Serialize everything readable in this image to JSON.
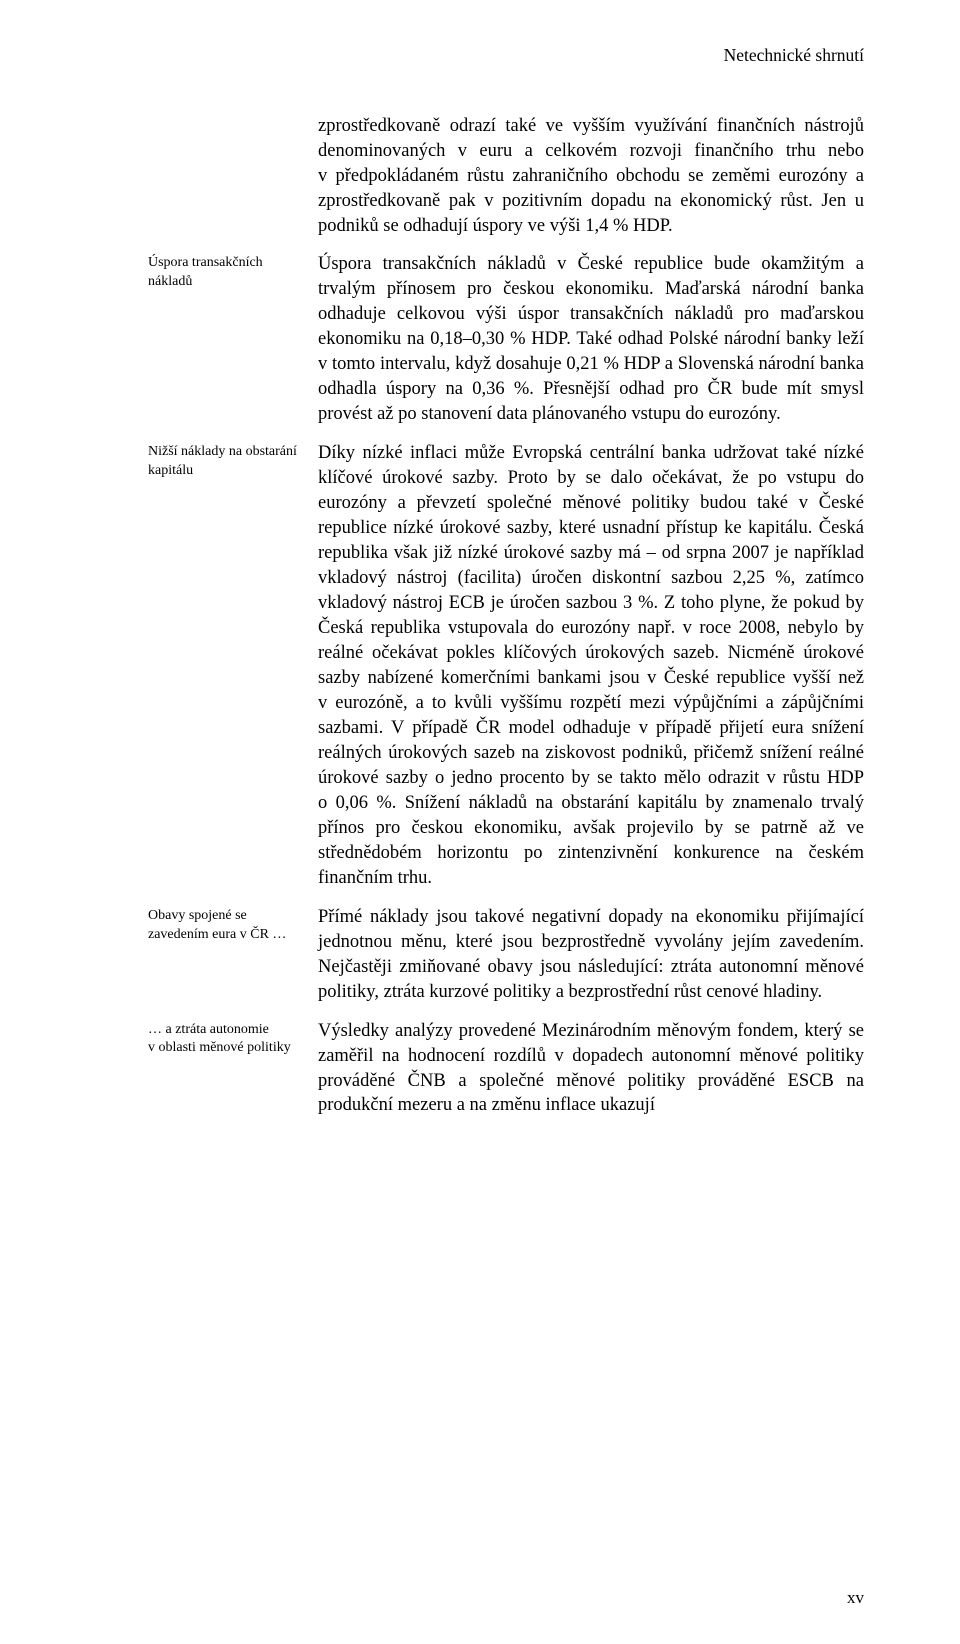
{
  "header_right": "Netechnické shrnutí",
  "page_number": "xv",
  "sections": [
    {
      "margin": "",
      "body": "zprostředkovaně odrazí také ve vyšším využívání finančních nástrojů denominovaných v euru a celkovém rozvoji finančního trhu nebo v předpokládaném růstu zahraničního obchodu se zeměmi eurozóny a zprostředkovaně pak v pozitivním dopadu na ekonomický růst. Jen u podniků se odhadují úspory ve výši 1,4 % HDP."
    },
    {
      "margin": "Úspora transakčních nákladů",
      "body": "Úspora transakčních nákladů v České republice bude okamžitým a trvalým přínosem pro českou ekonomiku. Maďarská národní banka odhaduje celkovou výši úspor transakčních nákladů pro maďarskou ekonomiku na 0,18–0,30 % HDP. Také odhad Polské národní banky leží v tomto intervalu, když dosahuje 0,21 % HDP a Slovenská národní banka odhadla úspory na 0,36 %. Přesnější odhad pro ČR bude mít smysl provést až po stanovení data plánovaného vstupu do eurozóny."
    },
    {
      "margin": "Nižší náklady na obstarání kapitálu",
      "body": "Díky nízké inflaci může Evropská centrální banka udržovat také nízké klíčové úrokové sazby. Proto by se dalo očekávat, že po vstupu do eurozóny a převzetí společné měnové politiky budou také v České republice nízké úrokové sazby, které usnadní přístup ke kapitálu. Česká republika však již nízké úrokové sazby má – od srpna 2007 je například vkladový nástroj (facilita) úročen diskontní sazbou 2,25 %, zatímco vkladový nástroj ECB je úročen sazbou 3 %. Z toho plyne, že pokud by Česká republika vstupovala do eurozóny např. v roce 2008, nebylo by reálné očekávat pokles klíčových úrokových sazeb. Nicméně úrokové sazby nabízené komerčními bankami jsou v České republice vyšší než v eurozóně, a to kvůli vyššímu rozpětí mezi výpůjčními a zápůjčními sazbami. V případě ČR model odhaduje v případě přijetí eura snížení reálných úrokových sazeb na ziskovost podniků, přičemž snížení reálné úrokové sazby o jedno procento by se takto mělo odrazit v růstu HDP o 0,06 %. Snížení nákladů na obstarání kapitálu by znamenalo trvalý přínos pro českou ekonomiku, avšak projevilo by se patrně až ve střednědobém horizontu po zintenzivnění konkurence na českém finančním trhu."
    },
    {
      "margin": "Obavy spojené se zavedením eura v ČR …",
      "body": "Přímé náklady jsou takové negativní dopady na ekonomiku přijímající jednotnou měnu, které jsou bezprostředně vyvolány jejím zavedením. Nejčastěji zmiňované obavy jsou následující: ztráta autonomní měnové politiky, ztráta kurzové politiky a bezprostřední růst cenové hladiny."
    },
    {
      "margin": "… a ztráta autonomie v oblasti měnové politiky",
      "body": "Výsledky analýzy provedené Mezinárodním měnovým fondem, který se zaměřil na hodnocení rozdílů v dopadech autonomní měnové politiky prováděné ČNB a společné měnové politiky prováděné ESCB na produkční mezeru a na změnu inflace ukazují"
    }
  ]
}
